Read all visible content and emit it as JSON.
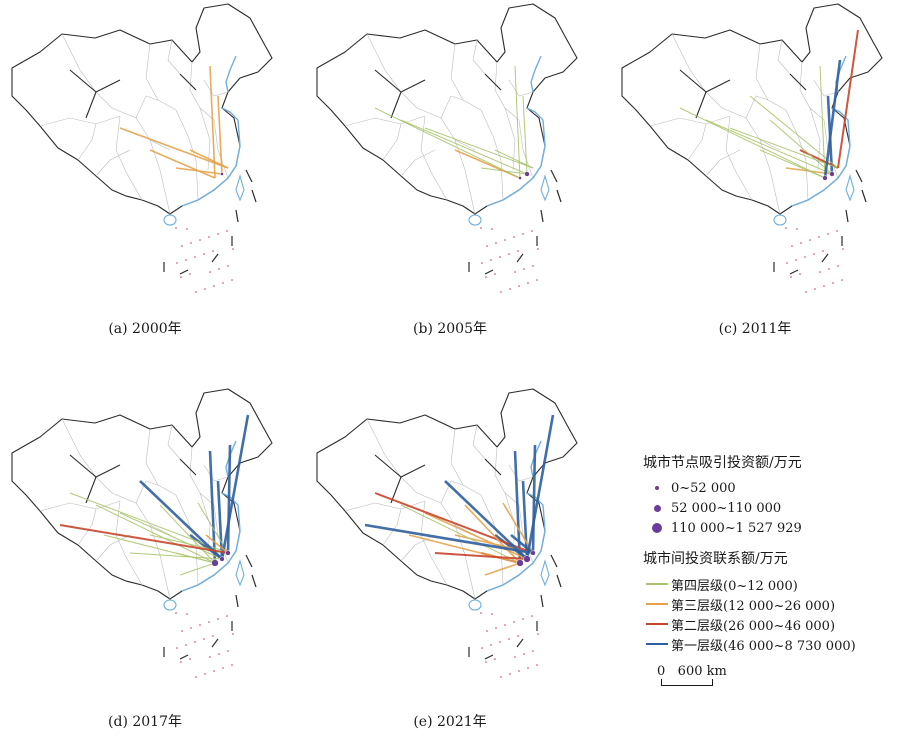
{
  "panels": [
    {
      "caption": "(a) 2000年",
      "lines": [
        [
          0,
          2
        ],
        [
          1,
          2
        ],
        [
          3,
          2
        ],
        [
          4,
          2
        ],
        [
          5,
          2
        ],
        [
          6,
          2
        ]
      ],
      "nodes": [
        {
          "level": 1
        }
      ]
    },
    {
      "caption": "(b) 2005年",
      "lines": [
        [
          0,
          1
        ],
        [
          1,
          1
        ],
        [
          3,
          1
        ],
        [
          4,
          1
        ],
        [
          5,
          2
        ],
        [
          6,
          1
        ],
        [
          7,
          1
        ],
        [
          8,
          1
        ]
      ],
      "nodes": [
        {
          "level": 2
        },
        {
          "level": 1
        }
      ]
    },
    {
      "caption": "(c) 2011年",
      "lines": [
        [
          0,
          4
        ],
        [
          1,
          1
        ],
        [
          3,
          3
        ],
        [
          4,
          2
        ],
        [
          5,
          1
        ],
        [
          6,
          1
        ],
        [
          7,
          1
        ],
        [
          8,
          1
        ],
        [
          9,
          1
        ],
        [
          10,
          1
        ],
        [
          11,
          4
        ],
        [
          12,
          3
        ]
      ],
      "nodes": [
        {
          "level": 2
        },
        {
          "level": 2
        }
      ]
    },
    {
      "caption": "(d) 2017年",
      "lines": [
        [
          0,
          4
        ],
        [
          1,
          4
        ],
        [
          2,
          1
        ],
        [
          3,
          4
        ],
        [
          4,
          1
        ],
        [
          5,
          1
        ],
        [
          6,
          1
        ],
        [
          7,
          1
        ],
        [
          8,
          1
        ],
        [
          9,
          4
        ],
        [
          10,
          1
        ],
        [
          11,
          4
        ],
        [
          12,
          4
        ],
        [
          13,
          1
        ],
        [
          14,
          3
        ],
        [
          15,
          1
        ],
        [
          16,
          1
        ],
        [
          17,
          2
        ]
      ],
      "nodes": [
        {
          "level": 2
        },
        {
          "level": 3
        },
        {
          "level": 2
        }
      ]
    },
    {
      "caption": "(e) 2021年",
      "lines": [
        [
          0,
          4
        ],
        [
          1,
          4
        ],
        [
          2,
          2
        ],
        [
          3,
          4
        ],
        [
          4,
          3
        ],
        [
          5,
          2
        ],
        [
          6,
          2
        ],
        [
          7,
          1
        ],
        [
          8,
          3
        ],
        [
          9,
          4
        ],
        [
          10,
          2
        ],
        [
          11,
          4
        ],
        [
          12,
          4
        ],
        [
          13,
          2
        ],
        [
          14,
          4
        ],
        [
          15,
          3
        ],
        [
          16,
          2
        ],
        [
          17,
          4
        ]
      ],
      "nodes": [
        {
          "level": 3
        },
        {
          "level": 3
        },
        {
          "level": 2
        }
      ]
    }
  ],
  "legend": {
    "node_title": "城市节点吸引投资额/万元",
    "node_items": [
      {
        "label": "0~52 000",
        "color": "#6a3d9a"
      },
      {
        "label": "52 000~110 000",
        "color": "#6a3d9a"
      },
      {
        "label": "110 000~1 527 929",
        "color": "#6a3d9a"
      }
    ],
    "link_title": "城市间投资联系额/万元",
    "link_items": [
      {
        "label": "第四层级(0~12 000)",
        "color": "#a9c46c"
      },
      {
        "label": "第三层级(12 000~26 000)",
        "color": "#e6a34d"
      },
      {
        "label": "第二层级(26 000~46 000)",
        "color": "#c8452b"
      },
      {
        "label": "第一层级(46 000~8 730 000)",
        "color": "#2f5f9e"
      }
    ],
    "scale_label": "0   600 km"
  }
}
